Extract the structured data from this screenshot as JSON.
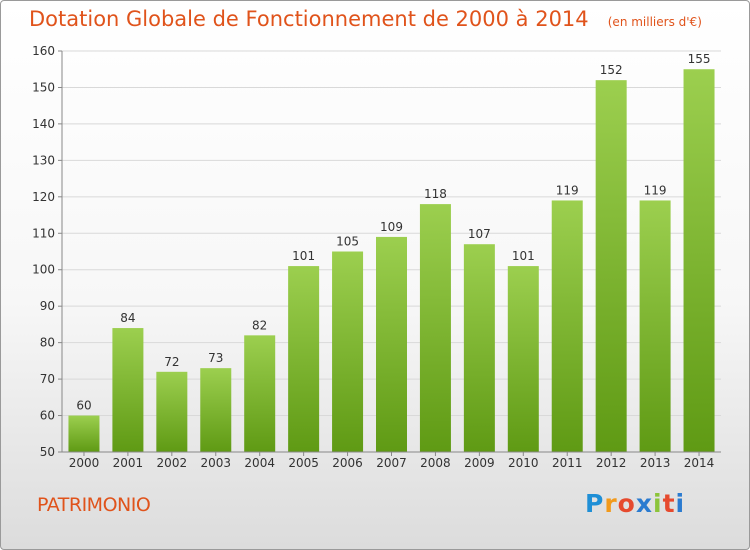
{
  "header": {
    "title": "Dotation Globale de Fonctionnement de 2000 à 2014",
    "unit": "(en milliers d'€)"
  },
  "footer": {
    "place": "PATRIMONIO",
    "logo": "Proxiti"
  },
  "colors": {
    "bar_top": "#9ccf4f",
    "bar_bottom": "#5f9a14",
    "title": "#e0531b",
    "grid": "#d9d9d9",
    "axis": "#888888"
  },
  "chart_data": {
    "type": "bar",
    "title": "Dotation Globale de Fonctionnement de 2000 à 2014",
    "subtitle": "(en milliers d'€)",
    "categories": [
      "2000",
      "2001",
      "2002",
      "2003",
      "2004",
      "2005",
      "2006",
      "2007",
      "2008",
      "2009",
      "2010",
      "2011",
      "2012",
      "2013",
      "2014"
    ],
    "values": [
      60,
      84,
      72,
      73,
      82,
      101,
      105,
      109,
      118,
      107,
      101,
      119,
      152,
      119,
      155
    ],
    "xlabel": "",
    "ylabel": "",
    "ylim": [
      50,
      160
    ],
    "yticks": [
      50,
      60,
      70,
      80,
      90,
      100,
      110,
      120,
      130,
      140,
      150,
      160
    ],
    "grid": true,
    "data_labels": true
  }
}
